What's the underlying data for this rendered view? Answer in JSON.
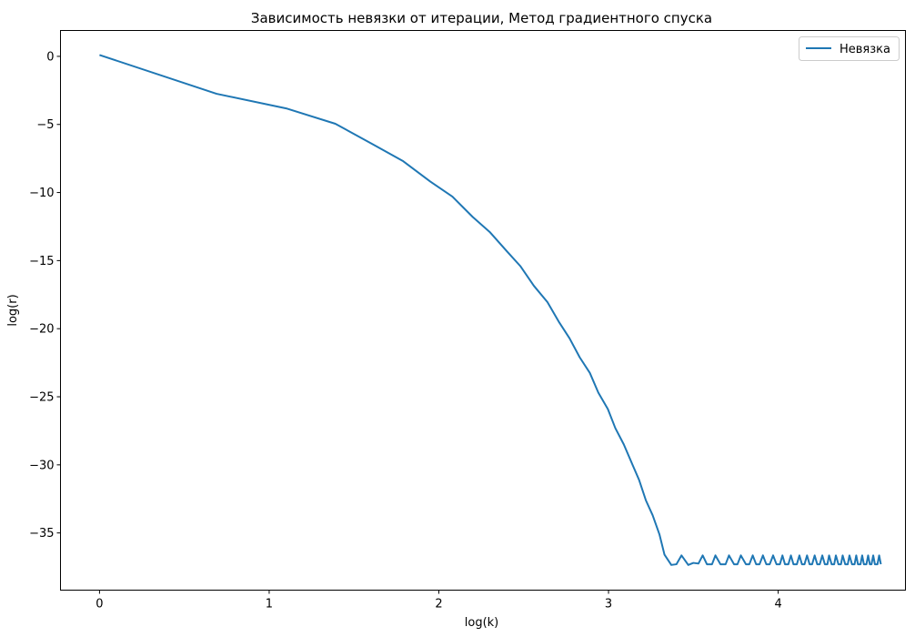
{
  "chart_data": {
    "type": "line",
    "title": "Зависимость невязки от итерации, Метод градиентного спуска",
    "xlabel": "log(k)",
    "ylabel": "log(r)",
    "xlim": [
      -0.23,
      4.75
    ],
    "ylim": [
      -39.2,
      1.9
    ],
    "grid": false,
    "legend_position": "top-right",
    "x_ticks": [
      0,
      1,
      2,
      3,
      4
    ],
    "y_ticks": [
      0,
      -5,
      -10,
      -15,
      -20,
      -25,
      -30,
      -35
    ],
    "x_tick_labels": [
      "0",
      "1",
      "2",
      "3",
      "4"
    ],
    "y_tick_labels": [
      "0",
      "−5",
      "−10",
      "−15",
      "−20",
      "−25",
      "−30",
      "−35"
    ],
    "series": [
      {
        "name": "Невязка",
        "color": "#1f77b4",
        "points": [
          [
            0.0,
            0.1
          ],
          [
            0.69,
            -2.75
          ],
          [
            1.1,
            -3.82
          ],
          [
            1.39,
            -4.95
          ],
          [
            1.61,
            -6.45
          ],
          [
            1.79,
            -7.7
          ],
          [
            1.95,
            -9.2
          ],
          [
            2.08,
            -10.3
          ],
          [
            2.2,
            -11.8
          ],
          [
            2.3,
            -12.9
          ],
          [
            2.4,
            -14.3
          ],
          [
            2.48,
            -15.4
          ],
          [
            2.56,
            -16.85
          ],
          [
            2.64,
            -18.05
          ],
          [
            2.71,
            -19.55
          ],
          [
            2.77,
            -20.7
          ],
          [
            2.83,
            -22.1
          ],
          [
            2.89,
            -23.25
          ],
          [
            2.94,
            -24.7
          ],
          [
            2.996,
            -25.9
          ],
          [
            3.04,
            -27.3
          ],
          [
            3.09,
            -28.5
          ],
          [
            3.14,
            -29.95
          ],
          [
            3.18,
            -31.1
          ],
          [
            3.22,
            -32.6
          ],
          [
            3.26,
            -33.7
          ],
          [
            3.3,
            -35.1
          ],
          [
            3.33,
            -36.6
          ],
          [
            3.37,
            -37.35
          ],
          [
            3.4,
            -37.3
          ],
          [
            3.43,
            -36.65
          ],
          [
            3.47,
            -37.35
          ],
          [
            3.5,
            -37.2
          ],
          [
            3.53,
            -37.25
          ],
          [
            3.555,
            -36.65
          ],
          [
            3.58,
            -37.3
          ],
          [
            3.61,
            -37.3
          ],
          [
            3.63,
            -36.65
          ],
          [
            3.66,
            -37.3
          ],
          [
            3.69,
            -37.3
          ],
          [
            3.71,
            -36.65
          ],
          [
            3.74,
            -37.3
          ],
          [
            3.76,
            -37.3
          ],
          [
            3.78,
            -36.65
          ],
          [
            3.81,
            -37.3
          ],
          [
            3.83,
            -37.3
          ],
          [
            3.85,
            -36.65
          ],
          [
            3.87,
            -37.3
          ],
          [
            3.89,
            -37.3
          ],
          [
            3.91,
            -36.65
          ],
          [
            3.93,
            -37.3
          ],
          [
            3.95,
            -37.3
          ],
          [
            3.97,
            -36.65
          ],
          [
            3.99,
            -37.3
          ],
          [
            4.01,
            -37.3
          ],
          [
            4.025,
            -36.65
          ],
          [
            4.04,
            -37.3
          ],
          [
            4.06,
            -37.3
          ],
          [
            4.075,
            -36.65
          ],
          [
            4.09,
            -37.3
          ],
          [
            4.11,
            -37.3
          ],
          [
            4.125,
            -36.65
          ],
          [
            4.14,
            -37.3
          ],
          [
            4.155,
            -37.3
          ],
          [
            4.17,
            -36.65
          ],
          [
            4.185,
            -37.3
          ],
          [
            4.2,
            -37.3
          ],
          [
            4.215,
            -36.65
          ],
          [
            4.23,
            -37.3
          ],
          [
            4.245,
            -37.3
          ],
          [
            4.26,
            -36.65
          ],
          [
            4.275,
            -37.3
          ],
          [
            4.29,
            -37.3
          ],
          [
            4.3,
            -36.65
          ],
          [
            4.315,
            -37.3
          ],
          [
            4.33,
            -37.3
          ],
          [
            4.34,
            -36.65
          ],
          [
            4.355,
            -37.3
          ],
          [
            4.37,
            -37.3
          ],
          [
            4.38,
            -36.65
          ],
          [
            4.395,
            -37.3
          ],
          [
            4.41,
            -37.3
          ],
          [
            4.42,
            -36.65
          ],
          [
            4.435,
            -37.3
          ],
          [
            4.45,
            -37.3
          ],
          [
            4.46,
            -36.65
          ],
          [
            4.47,
            -37.3
          ],
          [
            4.485,
            -37.3
          ],
          [
            4.495,
            -36.65
          ],
          [
            4.505,
            -37.3
          ],
          [
            4.52,
            -37.3
          ],
          [
            4.53,
            -36.65
          ],
          [
            4.54,
            -37.3
          ],
          [
            4.55,
            -37.3
          ],
          [
            4.56,
            -36.65
          ],
          [
            4.57,
            -37.3
          ],
          [
            4.585,
            -37.3
          ],
          [
            4.595,
            -36.65
          ],
          [
            4.605,
            -37.3
          ]
        ]
      }
    ]
  }
}
